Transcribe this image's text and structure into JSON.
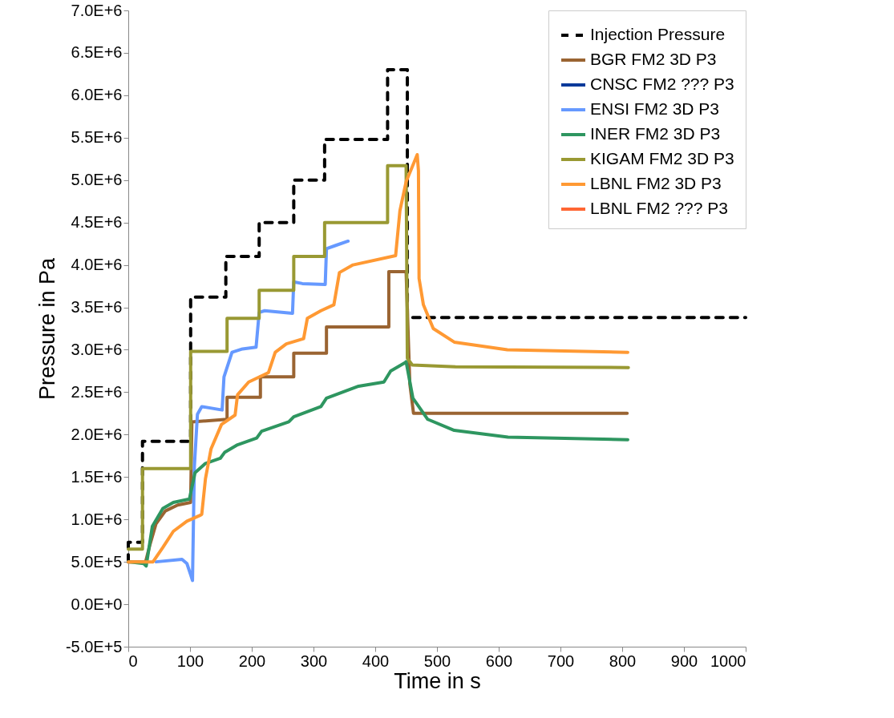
{
  "chart_data": {
    "type": "line",
    "xlabel": "Time in s",
    "ylabel": "Pressure in Pa",
    "xlim": [
      0,
      1000
    ],
    "xticks": [
      0,
      100,
      200,
      300,
      400,
      500,
      600,
      700,
      800,
      900,
      1000
    ],
    "ylim": [
      -500000,
      7000000
    ],
    "yticks": [
      {
        "value": -500000,
        "label": "-5.0E+5"
      },
      {
        "value": 0,
        "label": "0.0E+0"
      },
      {
        "value": 500000,
        "label": "5.0E+5"
      },
      {
        "value": 1000000,
        "label": "1.0E+6"
      },
      {
        "value": 1500000,
        "label": "1.5E+6"
      },
      {
        "value": 2000000,
        "label": "2.0E+6"
      },
      {
        "value": 2500000,
        "label": "2.5E+6"
      },
      {
        "value": 3000000,
        "label": "3.0E+6"
      },
      {
        "value": 3500000,
        "label": "3.5E+6"
      },
      {
        "value": 4000000,
        "label": "4.0E+6"
      },
      {
        "value": 4500000,
        "label": "4.5E+6"
      },
      {
        "value": 5000000,
        "label": "5.0E+6"
      },
      {
        "value": 5500000,
        "label": "5.5E+6"
      },
      {
        "value": 6000000,
        "label": "6.0E+6"
      },
      {
        "value": 6500000,
        "label": "6.5E+6"
      },
      {
        "value": 7000000,
        "label": "7.0E+6"
      }
    ],
    "grid": false,
    "legend": "top right",
    "marker": "none",
    "series": [
      {
        "name": "Injection Pressure",
        "color": "#000000",
        "line_style": "dashed",
        "x": [
          0,
          0,
          23,
          23,
          101,
          101,
          158,
          158,
          212,
          212,
          268,
          268,
          318,
          318,
          420,
          420,
          452,
          452,
          1000
        ],
        "values": [
          500000,
          730000,
          730000,
          1920000,
          1920000,
          3620000,
          3620000,
          4100000,
          4100000,
          4500000,
          4500000,
          5000000,
          5000000,
          5480000,
          5480000,
          6300000,
          6300000,
          3380000,
          3380000
        ]
      },
      {
        "name": "BGR FM2 3D P3",
        "color": "#9a6432",
        "x": [
          0,
          28,
          35,
          45,
          60,
          80,
          101,
          103,
          160,
          160,
          214,
          214,
          268,
          268,
          321,
          321,
          422,
          422,
          450,
          456,
          462,
          808
        ],
        "values": [
          500000,
          500000,
          700000,
          950000,
          1100000,
          1170000,
          1200000,
          2150000,
          2180000,
          2440000,
          2440000,
          2680000,
          2680000,
          2960000,
          2960000,
          3270000,
          3270000,
          3920000,
          3920000,
          2600000,
          2250000,
          2250000
        ]
      },
      {
        "name": "CNSC FM2 ??? P3",
        "color": "#0a3a9a"
      },
      {
        "name": "ENSI FM2 3D P3",
        "color": "#6699ff",
        "x": [
          45,
          87,
          95,
          101,
          104,
          107,
          112,
          119,
          152,
          155,
          168,
          185,
          207,
          212,
          221,
          266,
          268,
          282,
          319,
          321,
          336,
          356
        ],
        "values": [
          500000,
          530000,
          480000,
          350000,
          280000,
          1620000,
          2240000,
          2330000,
          2290000,
          2680000,
          2970000,
          3010000,
          3030000,
          3440000,
          3460000,
          3430000,
          3800000,
          3780000,
          3770000,
          4190000,
          4230000,
          4280000
        ]
      },
      {
        "name": "INER FM2 3D P3",
        "color": "#2e9660",
        "x": [
          0,
          25,
          29,
          39,
          56,
          73,
          99,
          108,
          125,
          149,
          156,
          177,
          208,
          216,
          260,
          268,
          312,
          321,
          373,
          414,
          425,
          449,
          450,
          461,
          485,
          528,
          615,
          809
        ],
        "values": [
          500000,
          480000,
          450000,
          920000,
          1130000,
          1200000,
          1240000,
          1550000,
          1660000,
          1720000,
          1790000,
          1880000,
          1960000,
          2040000,
          2150000,
          2210000,
          2330000,
          2430000,
          2570000,
          2620000,
          2750000,
          2850000,
          2860000,
          2430000,
          2180000,
          2050000,
          1970000,
          1940000
        ]
      },
      {
        "name": "KIGAM FM2 3D P3",
        "color": "#999933",
        "x": [
          0,
          23,
          23,
          101,
          101,
          160,
          160,
          212,
          212,
          268,
          268,
          318,
          318,
          420,
          420,
          450,
          452,
          460,
          530,
          810
        ],
        "values": [
          650000,
          650000,
          1600000,
          1600000,
          2980000,
          2980000,
          3370000,
          3370000,
          3700000,
          3700000,
          4100000,
          4100000,
          4500000,
          4500000,
          5170000,
          5170000,
          2900000,
          2820000,
          2800000,
          2790000
        ]
      },
      {
        "name": "LBNL FM2 3D P3",
        "color": "#ff9933",
        "x": [
          0,
          40,
          56,
          73,
          95,
          117,
          119,
          125,
          134,
          151,
          173,
          177,
          195,
          227,
          238,
          256,
          284,
          290,
          312,
          333,
          342,
          364,
          433,
          440,
          450,
          468,
          470,
          471,
          478,
          494,
          528,
          614,
          809
        ],
        "values": [
          500000,
          500000,
          670000,
          860000,
          980000,
          1050000,
          1060000,
          1480000,
          1830000,
          2120000,
          2230000,
          2470000,
          2620000,
          2730000,
          2970000,
          3070000,
          3130000,
          3370000,
          3460000,
          3530000,
          3910000,
          4000000,
          4110000,
          4640000,
          4980000,
          5300000,
          5110000,
          3840000,
          3530000,
          3250000,
          3090000,
          3000000,
          2970000
        ]
      },
      {
        "name": "LBNL FM2 ??? P3",
        "color": "#ff6633"
      }
    ]
  }
}
